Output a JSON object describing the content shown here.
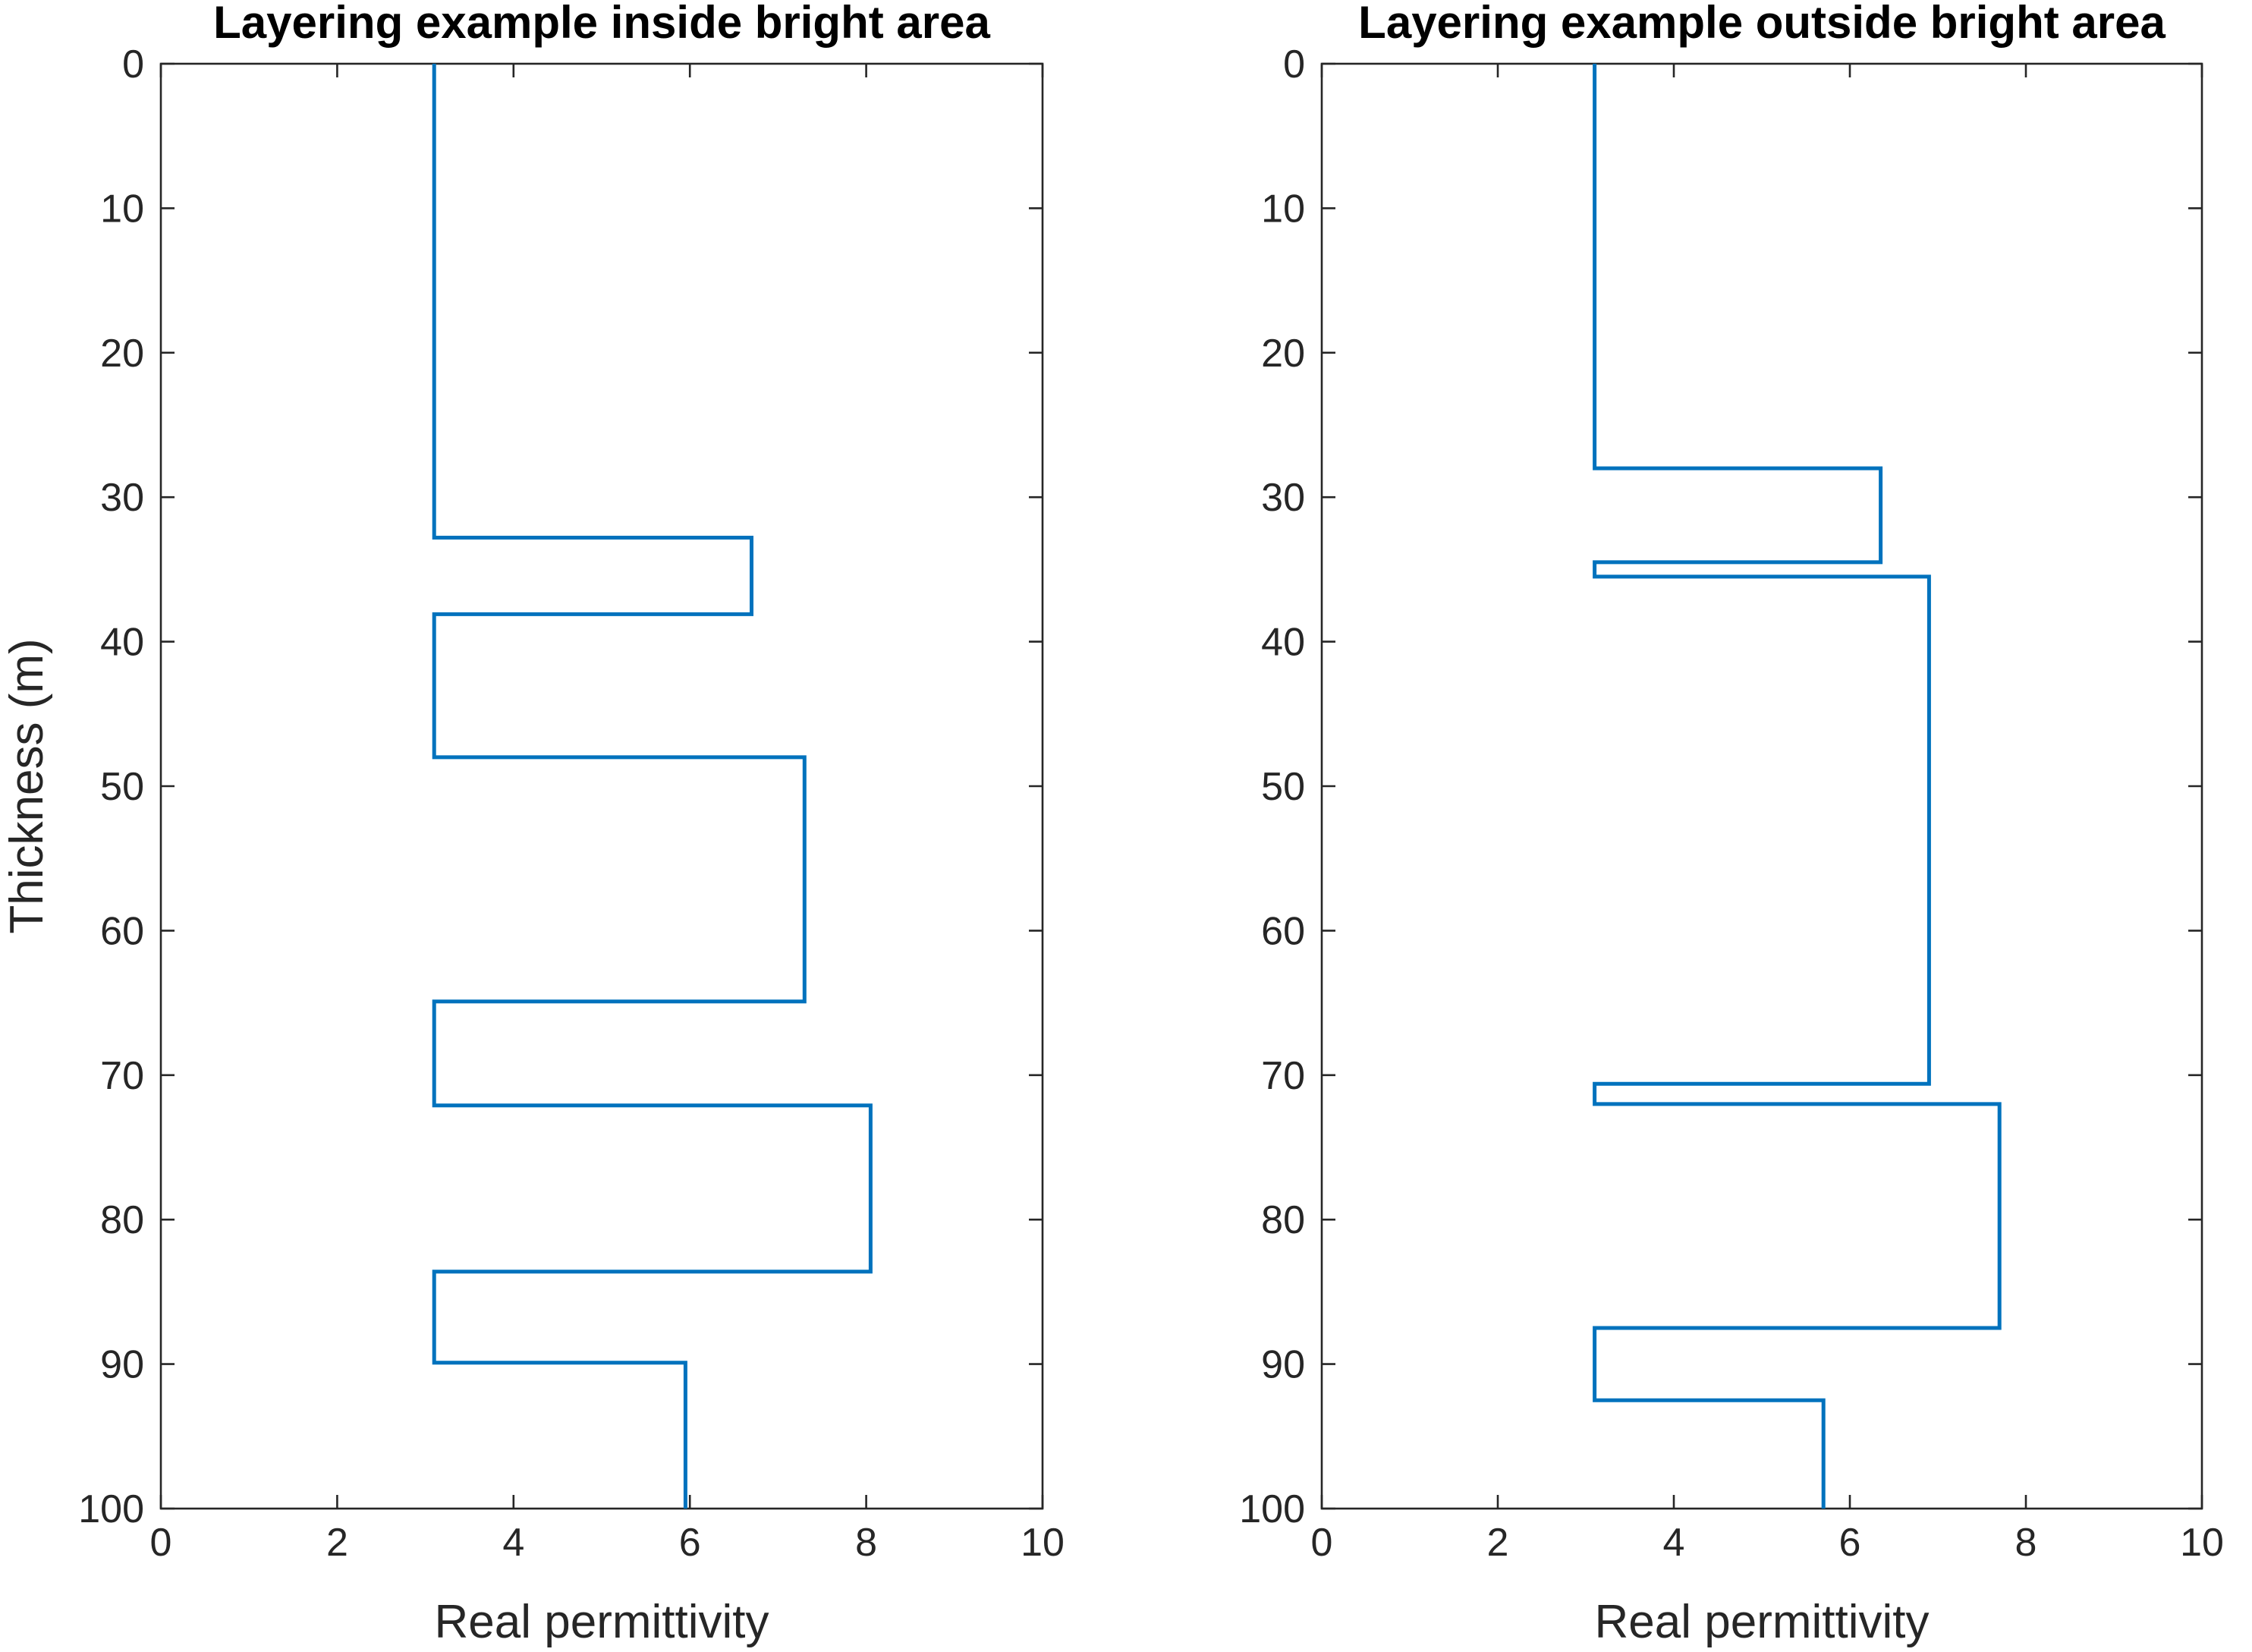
{
  "chart_data": [
    {
      "type": "line",
      "title": "Layering example inside bright area",
      "xlabel": "Real permittivity",
      "ylabel": "Thickness (m)",
      "xlim": [
        0,
        10
      ],
      "ylim": [
        0,
        100
      ],
      "y_reversed": true,
      "xticks": [
        "0",
        "2",
        "4",
        "6",
        "8",
        "10"
      ],
      "yticks": [
        "0",
        "10",
        "20",
        "30",
        "40",
        "50",
        "60",
        "70",
        "80",
        "90",
        "100"
      ],
      "grid": false,
      "color": "#0072BD",
      "series": [
        {
          "x": [
            3.1,
            3.1,
            6.7,
            6.7,
            3.1,
            3.1,
            7.3,
            7.3,
            3.1,
            3.1,
            8.05,
            8.05,
            3.1,
            3.1,
            5.95,
            5.95
          ],
          "y": [
            0,
            32.8,
            32.8,
            38.1,
            38.1,
            48,
            48,
            64.9,
            64.9,
            72.1,
            72.1,
            83.6,
            83.6,
            89.9,
            89.9,
            100
          ]
        }
      ]
    },
    {
      "type": "line",
      "title": "Layering example outside bright area",
      "xlabel": "Real permittivity",
      "ylabel": "",
      "xlim": [
        0,
        10
      ],
      "ylim": [
        0,
        100
      ],
      "y_reversed": true,
      "xticks": [
        "0",
        "2",
        "4",
        "6",
        "8",
        "10"
      ],
      "yticks": [
        "0",
        "10",
        "20",
        "30",
        "40",
        "50",
        "60",
        "70",
        "80",
        "90",
        "100"
      ],
      "grid": false,
      "color": "#0072BD",
      "series": [
        {
          "x": [
            3.1,
            3.1,
            6.35,
            6.35,
            3.1,
            3.1,
            6.9,
            6.9,
            3.1,
            3.1,
            7.7,
            7.7,
            3.1,
            3.1,
            5.7,
            5.7
          ],
          "y": [
            0,
            28,
            28,
            34.5,
            34.5,
            35.5,
            35.5,
            70.6,
            70.6,
            72,
            72,
            87.5,
            87.5,
            92.5,
            92.5,
            100
          ]
        }
      ]
    }
  ]
}
